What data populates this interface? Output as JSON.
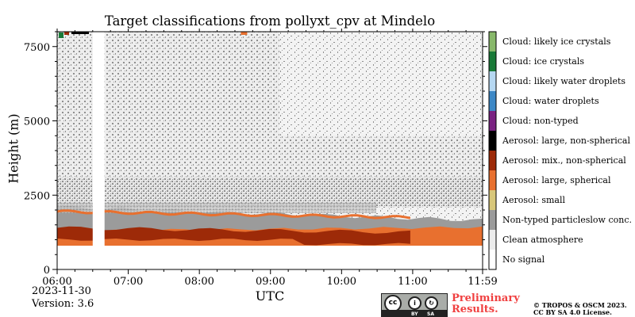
{
  "chart_data": {
    "type": "heatmap",
    "title": "Target classifications from pollyxt_cpv at Mindelo",
    "xlabel": "UTC",
    "ylabel": "Height (m)",
    "x_ticks": [
      "06:00",
      "07:00",
      "08:00",
      "09:00",
      "10:00",
      "11:00",
      "11:59"
    ],
    "y_ticks": [
      "0",
      "2500",
      "5000",
      "7500"
    ],
    "ylim": [
      0,
      8000
    ],
    "date": "2023-11-30",
    "version": "Version: 3.6",
    "categories": [
      {
        "label": "No signal",
        "color": "#ffffff"
      },
      {
        "label": "Clean atmosphere",
        "color": "#ececec"
      },
      {
        "label": "Non-typed particleslow conc.",
        "color": "#9b9b9b"
      },
      {
        "label": "Aerosol: small",
        "color": "#d8c77a"
      },
      {
        "label": "Aerosol: large, spherical",
        "color": "#e8702f"
      },
      {
        "label": "Aerosol: mix., non-spherical",
        "color": "#9d2a08"
      },
      {
        "label": "Aerosol: large, non-spherical",
        "color": "#000000"
      },
      {
        "label": "Cloud: non-typed",
        "color": "#7a2282"
      },
      {
        "label": "Cloud: water droplets",
        "color": "#3d88c6"
      },
      {
        "label": "Cloud: likely water droplets",
        "color": "#b6d8f2"
      },
      {
        "label": "Cloud: ice crystals",
        "color": "#197a38"
      },
      {
        "label": "Cloud: likely ice crystals",
        "color": "#88b86a"
      }
    ],
    "layers_height_m": {
      "no_signal_below": 800,
      "large_spherical_band": [
        800,
        1300
      ],
      "mixed_nonspherical_band": [
        1000,
        1400
      ],
      "particle_layer_top": 2100,
      "data_gap_utc": [
        "06:30",
        "06:40"
      ]
    }
  },
  "footer": {
    "prelim_line1": "Preliminary",
    "prelim_line2": "Results.",
    "copyright_line1": "© TROPOS & OSCM 2023.",
    "copyright_line2": "CC BY SA 4.0 License.",
    "cc_by": "BY",
    "cc_sa": "SA"
  }
}
